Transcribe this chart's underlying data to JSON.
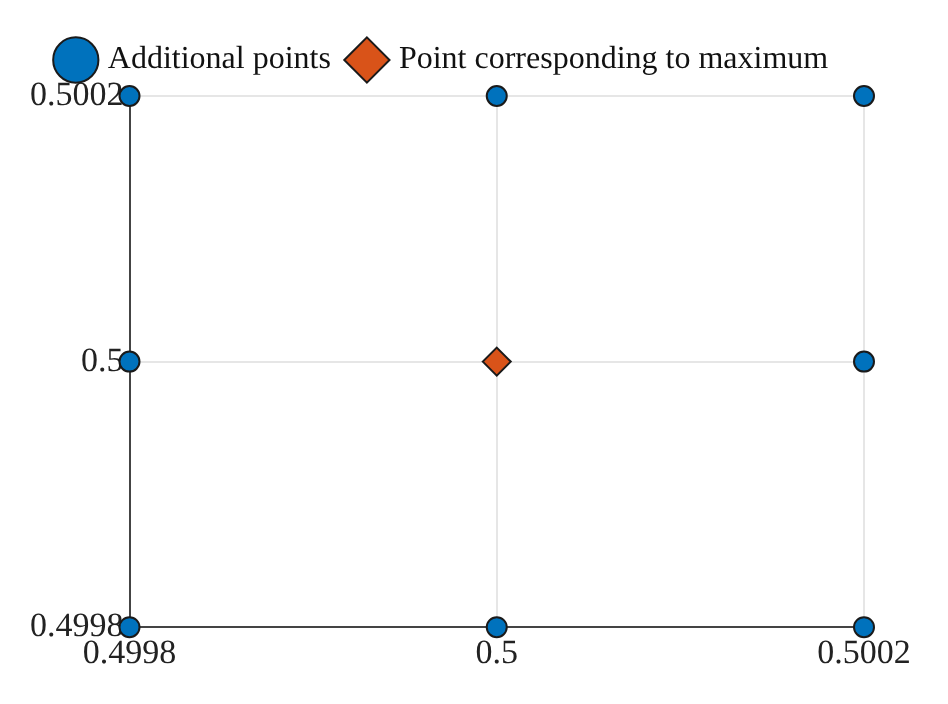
{
  "chart_data": {
    "type": "scatter",
    "xlim": [
      0.4998,
      0.5002
    ],
    "ylim": [
      0.4998,
      0.5002
    ],
    "xticks": [
      0.4998,
      0.5,
      0.5002
    ],
    "yticks": [
      0.4998,
      0.5,
      0.5002
    ],
    "grid": true,
    "legend": "top",
    "series": [
      {
        "name": "Additional points",
        "color": "#0072bd",
        "marker": "circle",
        "x": [
          0.4998,
          0.5,
          0.5002,
          0.4998,
          0.5002,
          0.4998,
          0.5,
          0.5002
        ],
        "values": [
          0.5002,
          0.5002,
          0.5002,
          0.5,
          0.5,
          0.4998,
          0.4998,
          0.4998
        ]
      },
      {
        "name": "Point corresponding to maximum",
        "color": "#d95319",
        "marker": "diamond",
        "x": [
          0.5
        ],
        "values": [
          0.5
        ]
      }
    ]
  }
}
